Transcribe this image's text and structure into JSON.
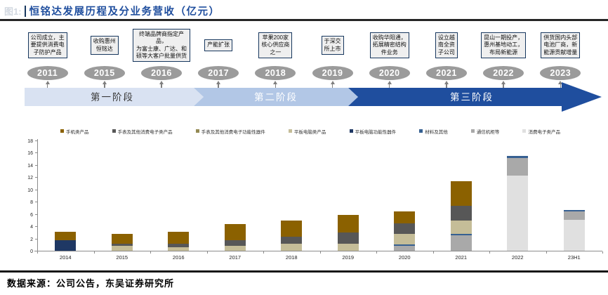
{
  "header": {
    "figure_label": "图1:",
    "title": "恒铭达发展历程及分业务营收（亿元）",
    "title_color": "#1F4E9E"
  },
  "timeline": {
    "events": [
      {
        "year": "2011",
        "text": "公司成立，主\n要提供消费电\n子防护产品"
      },
      {
        "year": "2015",
        "text": "收购惠州\n恒铭达"
      },
      {
        "year": "2016",
        "text": "终端品牌商指定产品，\n为富士康、广达、和\n硕等大客户批量供货"
      },
      {
        "year": "2017",
        "text": "产能扩张"
      },
      {
        "year": "2018",
        "text": "苹果200家\n核心供应商\n之一"
      },
      {
        "year": "2019",
        "text": "于深交\n所上市"
      },
      {
        "year": "2020",
        "text": "收购华阳通，\n拓展精密结构\n件业务"
      },
      {
        "year": "2021",
        "text": "设立越\n南全资\n子公司"
      },
      {
        "year": "2022",
        "text": "昆山一期投产，\n惠州基地动工，\n布局新能源"
      },
      {
        "year": "2023",
        "text": "供货国内头部\n电池厂商，新\n能源贡献增量"
      }
    ],
    "phases": [
      {
        "label": "第一阶段",
        "color": "#D9E2F2",
        "text_color": "#3a3a3a"
      },
      {
        "label": "第二阶段",
        "color": "#B2C7E6",
        "text_color": "#FFFFFF"
      },
      {
        "label": "第三阶段",
        "color": "#1F4E9E",
        "text_color": "#FFFFFF"
      }
    ]
  },
  "chart_data": {
    "type": "bar",
    "stacked": true,
    "grid": false,
    "legend_position": "top",
    "ylim": [
      0,
      18
    ],
    "ytick_step": 2,
    "categories": [
      "2014",
      "2015",
      "2016",
      "2017",
      "2018",
      "2019",
      "2020",
      "2021",
      "2022",
      "23H1"
    ],
    "series": [
      {
        "name": "手机类产品",
        "color": "#8B6100",
        "values": [
          1.4,
          1.5,
          2.0,
          2.7,
          2.6,
          2.8,
          1.9,
          4.1,
          0,
          0
        ]
      },
      {
        "name": "手表及其他消费电子类产品",
        "color": "#575757",
        "values": [
          0,
          0.4,
          0.5,
          0.9,
          1.2,
          1.9,
          1.7,
          2.4,
          0,
          0
        ]
      },
      {
        "name": "手表及其他消费电子功能性器件",
        "color": "#948A54",
        "values": [
          0,
          0,
          0,
          0,
          0,
          0,
          0,
          0,
          0,
          0
        ]
      },
      {
        "name": "平板电脑类产品",
        "color": "#C5BD98",
        "values": [
          0,
          0.8,
          0.6,
          0.8,
          1.1,
          1.1,
          1.8,
          2.1,
          0,
          0
        ]
      },
      {
        "name": "平板电脑功能性器件",
        "color": "#1F3864",
        "values": [
          1.7,
          0,
          0,
          0,
          0,
          0,
          0,
          0,
          0,
          0
        ]
      },
      {
        "name": "材料及其他",
        "color": "#366092",
        "values": [
          0,
          0,
          0,
          0,
          0,
          0,
          0.2,
          0.25,
          0.35,
          0.25
        ]
      },
      {
        "name": "通信机柜等",
        "color": "#A9A9A9",
        "values": [
          0,
          0,
          0,
          0,
          0,
          0,
          0.8,
          2.55,
          2.8,
          1.3
        ]
      },
      {
        "name": "消费电子类产品",
        "color": "#E0E0E0",
        "values": [
          0,
          0,
          0,
          0,
          0,
          0,
          0,
          0,
          12.3,
          5.1
        ]
      }
    ],
    "totals": [
      3.1,
      2.7,
      3.1,
      4.4,
      4.9,
      5.8,
      6.4,
      11.4,
      15.45,
      6.65
    ]
  },
  "footer": {
    "source": "数据来源：公司公告，东吴证券研究所"
  }
}
